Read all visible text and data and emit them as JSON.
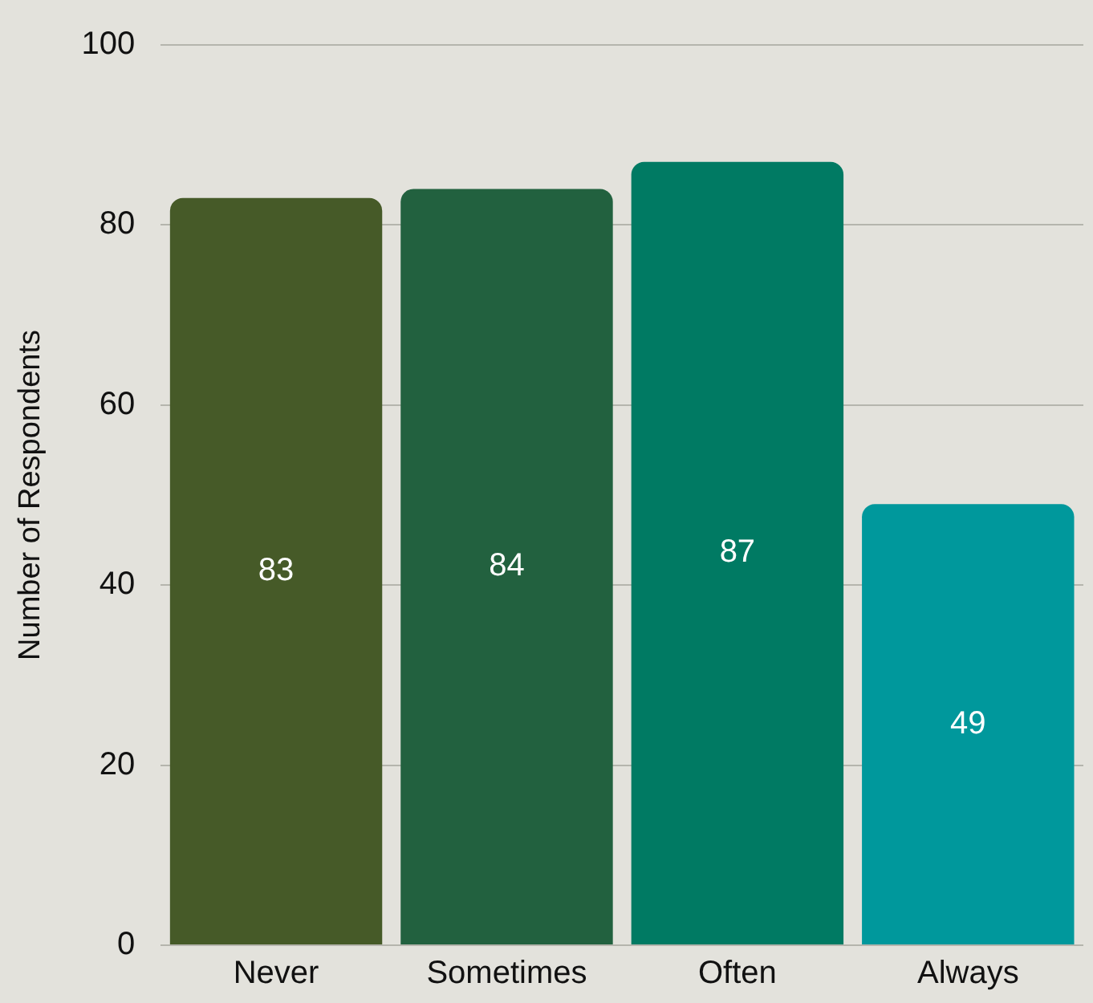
{
  "chart_data": {
    "type": "bar",
    "ylabel": "Number of Respondents",
    "categories": [
      "Never",
      "Sometimes",
      "Often",
      "Always"
    ],
    "values": [
      83,
      84,
      87,
      49
    ],
    "colors": [
      "#465a28",
      "#22613f",
      "#007a63",
      "#00989c"
    ],
    "ylim": [
      0,
      100
    ],
    "yticks": [
      0,
      20,
      40,
      60,
      80,
      100
    ],
    "grid": "y",
    "data_labels": true,
    "legend": false
  }
}
